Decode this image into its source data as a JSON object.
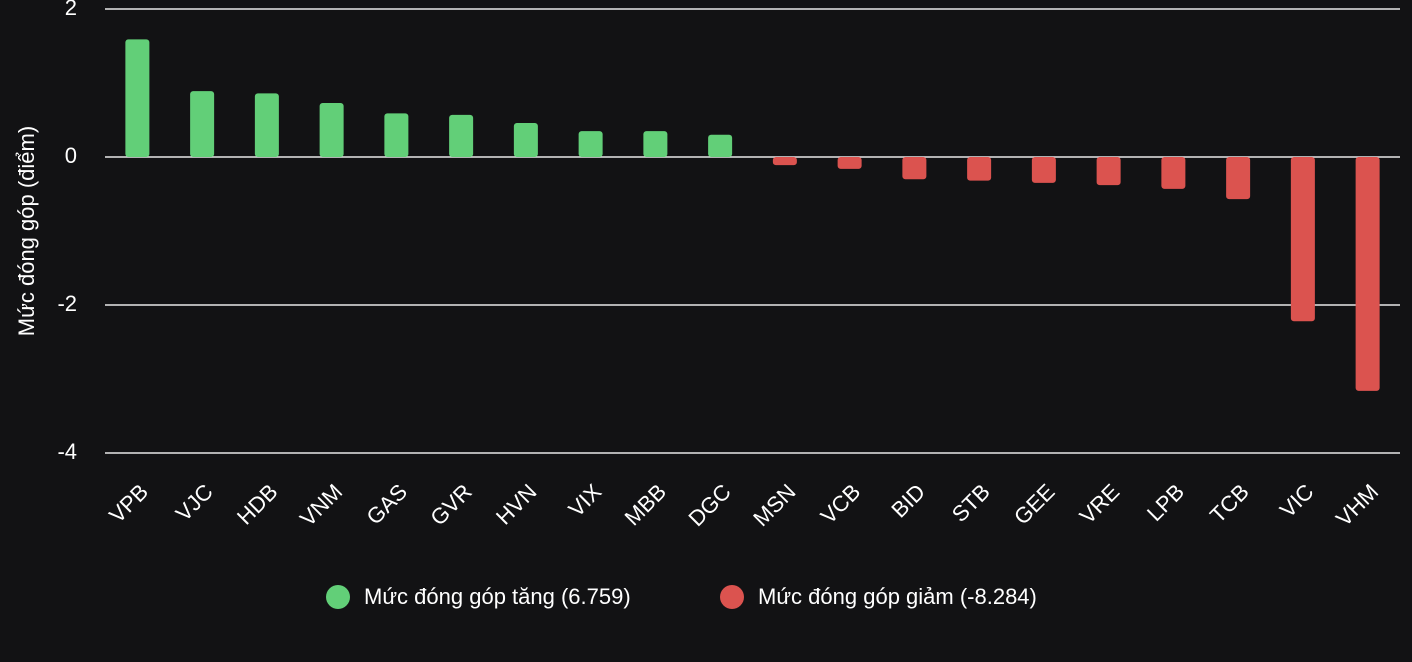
{
  "chart_data": {
    "type": "bar",
    "y_label": "Mức đóng góp (điểm)",
    "categories": [
      "VPB",
      "VJC",
      "HDB",
      "VNM",
      "GAS",
      "GVR",
      "HVN",
      "VIX",
      "MBB",
      "DGC",
      "MSN",
      "VCB",
      "BID",
      "STB",
      "GEE",
      "VRE",
      "LPB",
      "TCB",
      "VIC",
      "VHM"
    ],
    "series": [
      {
        "name": "Mức đóng góp tăng (6.759)",
        "color": "#62cf78",
        "values": [
          1.59,
          0.89,
          0.86,
          0.73,
          0.59,
          0.57,
          0.46,
          0.35,
          0.35,
          0.3,
          null,
          null,
          null,
          null,
          null,
          null,
          null,
          null,
          null,
          null
        ]
      },
      {
        "name": "Mức đóng góp giảm (-8.284)",
        "color": "#db534f",
        "values": [
          null,
          null,
          null,
          null,
          null,
          null,
          null,
          null,
          null,
          null,
          -0.11,
          -0.16,
          -0.3,
          -0.32,
          -0.35,
          -0.38,
          -0.43,
          -0.57,
          -2.22,
          -3.16
        ]
      }
    ],
    "ylim": [
      -4,
      2
    ],
    "yticks": [
      -4,
      -2,
      0,
      2
    ],
    "grid": true
  }
}
